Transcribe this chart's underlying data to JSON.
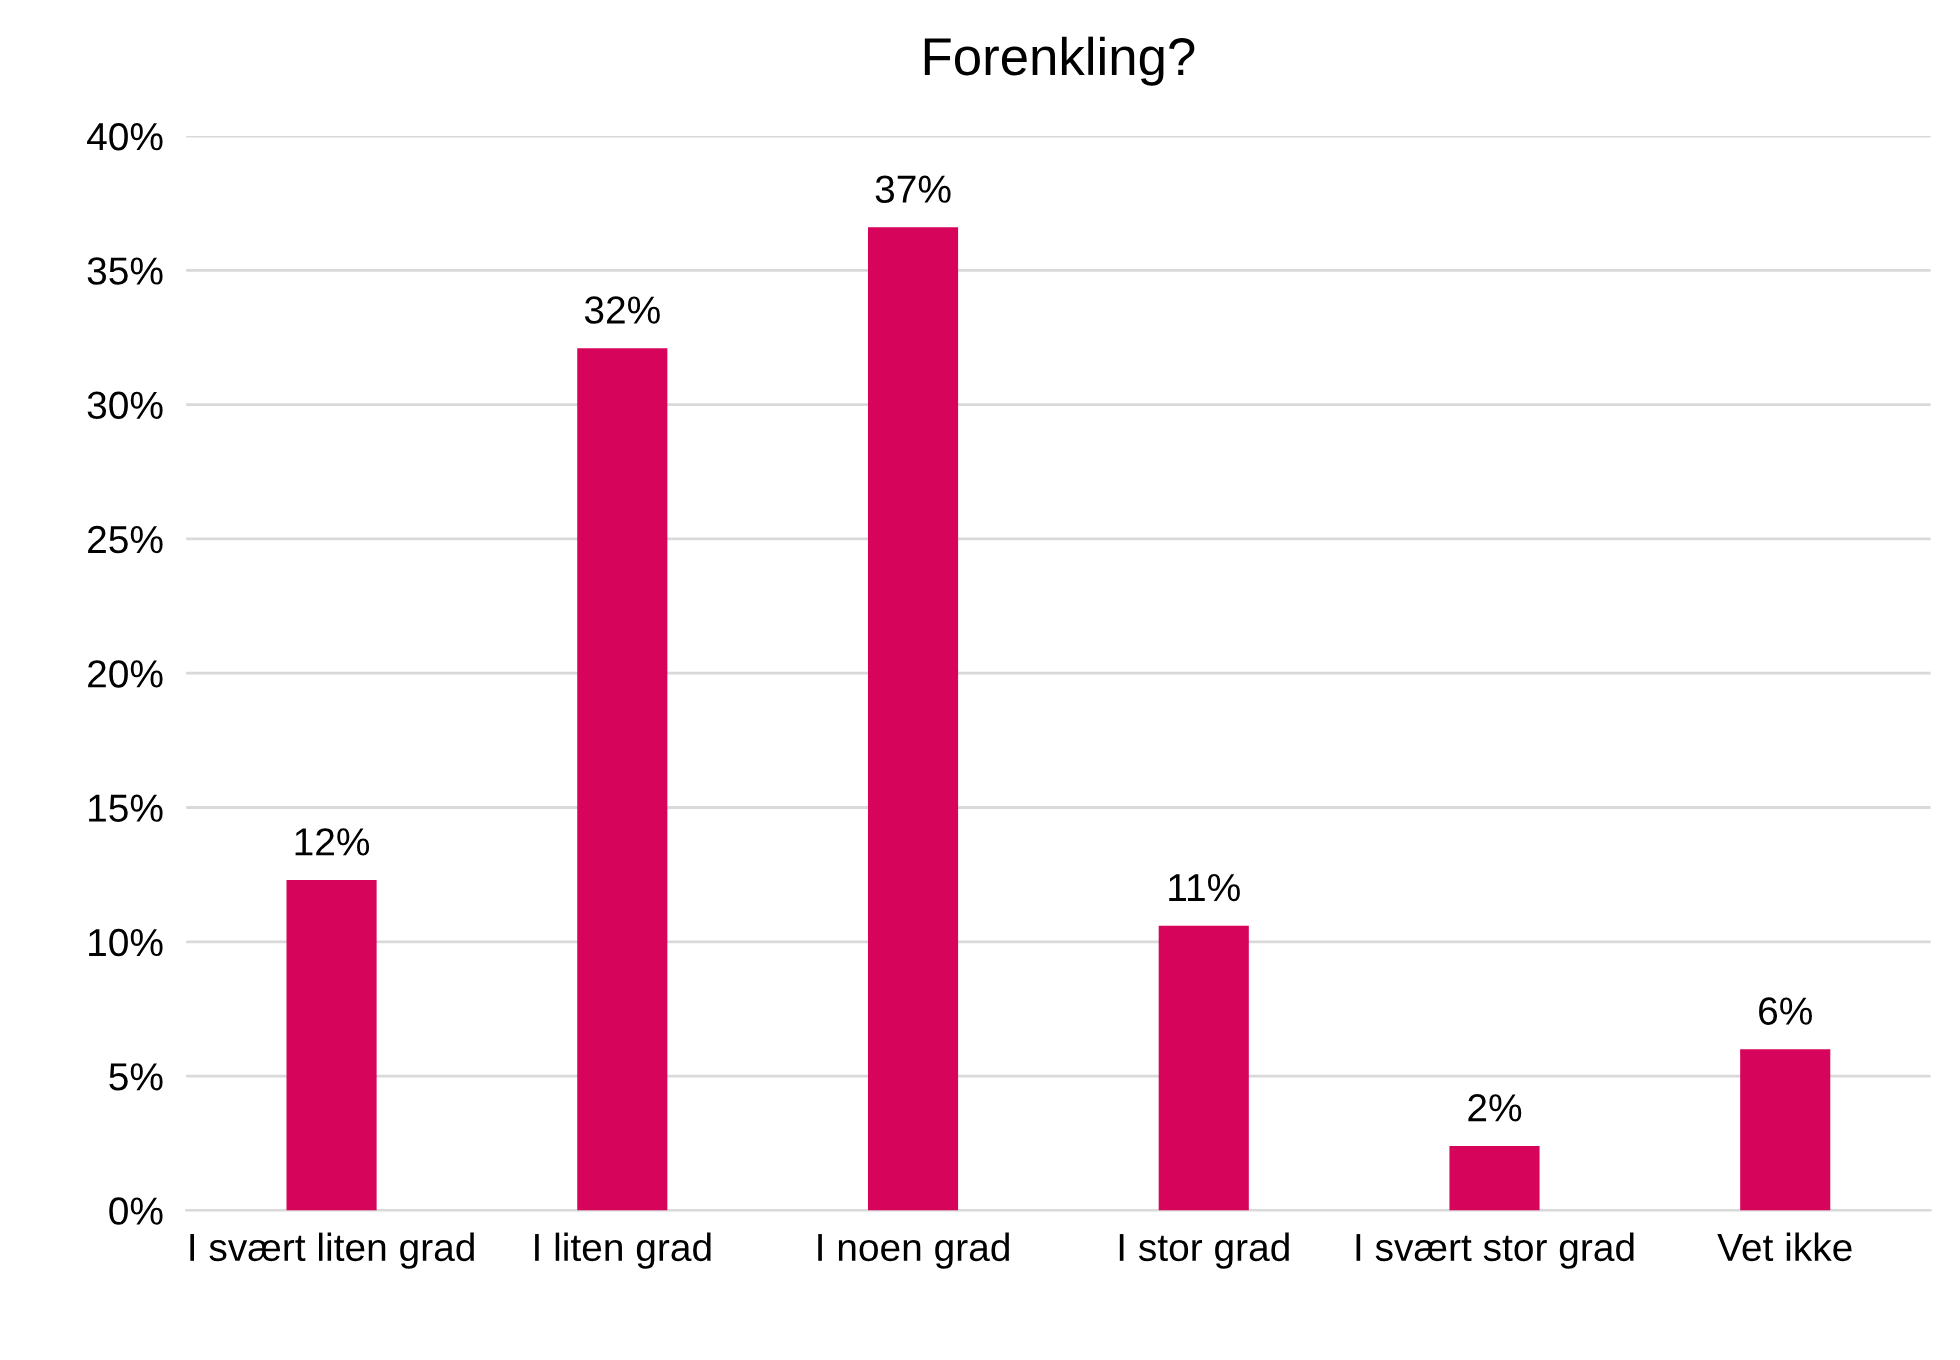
{
  "chart_data": {
    "type": "bar",
    "title": "Forenkling?",
    "categories": [
      "I svært liten grad",
      "I liten grad",
      "I noen grad",
      "I stor grad",
      "I svært stor grad",
      "Vet ikke"
    ],
    "values": [
      12.3,
      32.1,
      36.6,
      10.6,
      2.4,
      6.0
    ],
    "value_labels": [
      "12%",
      "32%",
      "37%",
      "11%",
      "2%",
      "6%"
    ],
    "color": "#d6045a",
    "ylim": [
      0,
      40
    ],
    "yticks": [
      {
        "value": 0,
        "label": "0%"
      },
      {
        "value": 5,
        "label": "5%"
      },
      {
        "value": 10,
        "label": "10%"
      },
      {
        "value": 15,
        "label": "15%"
      },
      {
        "value": 20,
        "label": "20%"
      },
      {
        "value": 25,
        "label": "25%"
      },
      {
        "value": 30,
        "label": "30%"
      },
      {
        "value": 35,
        "label": "35%"
      },
      {
        "value": 40,
        "label": "40%"
      }
    ],
    "grid": "y"
  }
}
